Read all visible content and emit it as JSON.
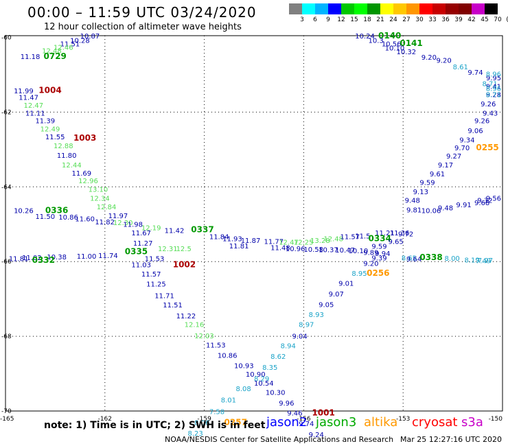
{
  "header": {
    "title": "00:00 – 11:59 UTC 03/24/2020",
    "subtitle": "12 hour collection of altimeter wave heights"
  },
  "color_scale": {
    "labels": [
      "3",
      "6",
      "9",
      "12",
      "15",
      "18",
      "21",
      "24",
      "27",
      "30",
      "33",
      "36",
      "39",
      "42",
      "45",
      "70",
      "(ft)"
    ],
    "colors": [
      "#808080",
      "#00ffff",
      "#00b4ff",
      "#0000ff",
      "#00c800",
      "#00ff00",
      "#009600",
      "#ffff00",
      "#ffc800",
      "#ff9600",
      "#ff0000",
      "#c80000",
      "#960000",
      "#800000",
      "#c800c8",
      "#000000"
    ]
  },
  "map": {
    "lon_range": [
      -165,
      -150
    ],
    "lat_range": [
      -70,
      -60
    ],
    "lat_ticks": [
      "-60",
      "-62",
      "-64",
      "-66",
      "-68",
      "-70"
    ],
    "lon_ticks": [
      "-165",
      "-162",
      "-159",
      "-156",
      "-153",
      "-150"
    ]
  },
  "colors": {
    "j2_dark": "#0000aa",
    "j2_light": "#1aa3c8",
    "j3_light": "#55dd55",
    "j3_dark": "#009900",
    "altika": "#ff9900",
    "cryosat": "#aa0000",
    "s3a": "#1a88ff"
  },
  "measurements": [
    {
      "v": "10.87",
      "lon": -162.75,
      "lat": -60.03,
      "c": "j2_dark"
    },
    {
      "v": "10.28",
      "lon": -163.05,
      "lat": -60.15,
      "c": "j2_dark"
    },
    {
      "v": "11.51",
      "lon": -163.35,
      "lat": -60.24,
      "c": "j2_dark"
    },
    {
      "v": "12.46",
      "lon": -163.55,
      "lat": -60.33,
      "c": "j3_light"
    },
    {
      "v": "12.48",
      "lon": -163.9,
      "lat": -60.42,
      "c": "j3_light"
    },
    {
      "v": "11.18",
      "lon": -164.55,
      "lat": -60.58,
      "c": "j2_dark"
    },
    {
      "v": "0729",
      "lon": -163.85,
      "lat": -60.58,
      "c": "j3_dark",
      "id": true
    },
    {
      "v": "11.99",
      "lon": -164.75,
      "lat": -61.5,
      "c": "j2_dark"
    },
    {
      "v": "1004",
      "lon": -164.0,
      "lat": -61.49,
      "c": "cryosat",
      "id": true
    },
    {
      "v": "11.47",
      "lon": -164.6,
      "lat": -61.67,
      "c": "j2_dark"
    },
    {
      "v": "12.47",
      "lon": -164.45,
      "lat": -61.88,
      "c": "j3_light"
    },
    {
      "v": "11.11",
      "lon": -164.4,
      "lat": -62.09,
      "c": "j2_dark"
    },
    {
      "v": "11.39",
      "lon": -164.1,
      "lat": -62.3,
      "c": "j2_dark"
    },
    {
      "v": "12.49",
      "lon": -163.95,
      "lat": -62.52,
      "c": "j3_light"
    },
    {
      "v": "11.55",
      "lon": -163.8,
      "lat": -62.73,
      "c": "j2_dark"
    },
    {
      "v": "1003",
      "lon": -162.95,
      "lat": -62.76,
      "c": "cryosat",
      "id": true
    },
    {
      "v": "12.88",
      "lon": -163.55,
      "lat": -62.97,
      "c": "j3_light"
    },
    {
      "v": "11.80",
      "lon": -163.45,
      "lat": -63.22,
      "c": "j2_dark"
    },
    {
      "v": "12.44",
      "lon": -163.3,
      "lat": -63.48,
      "c": "j3_light"
    },
    {
      "v": "11.69",
      "lon": -163.0,
      "lat": -63.7,
      "c": "j2_dark"
    },
    {
      "v": "12.96",
      "lon": -162.8,
      "lat": -63.9,
      "c": "j3_light"
    },
    {
      "v": "13.10",
      "lon": -162.5,
      "lat": -64.13,
      "c": "j3_light"
    },
    {
      "v": "12.34",
      "lon": -162.45,
      "lat": -64.37,
      "c": "j3_light"
    },
    {
      "v": "12.84",
      "lon": -162.25,
      "lat": -64.6,
      "c": "j3_light"
    },
    {
      "v": "10.26",
      "lon": -164.75,
      "lat": -64.7,
      "c": "j2_dark"
    },
    {
      "v": "0336",
      "lon": -163.8,
      "lat": -64.7,
      "c": "j3_dark",
      "id": true
    },
    {
      "v": "11.97",
      "lon": -161.9,
      "lat": -64.84,
      "c": "j2_dark"
    },
    {
      "v": "11.50",
      "lon": -164.1,
      "lat": -64.86,
      "c": "j2_dark"
    },
    {
      "v": "10.86",
      "lon": -163.4,
      "lat": -64.88,
      "c": "j2_dark"
    },
    {
      "v": "11.60",
      "lon": -162.9,
      "lat": -64.92,
      "c": "j2_dark"
    },
    {
      "v": "11.82",
      "lon": -162.3,
      "lat": -65.0,
      "c": "j2_dark"
    },
    {
      "v": "12.30",
      "lon": -161.75,
      "lat": -65.02,
      "c": "j3_light"
    },
    {
      "v": "11.98",
      "lon": -161.45,
      "lat": -65.07,
      "c": "j2_dark"
    },
    {
      "v": "12.19",
      "lon": -160.9,
      "lat": -65.16,
      "c": "j3_light"
    },
    {
      "v": "11.42",
      "lon": -160.2,
      "lat": -65.23,
      "c": "j2_dark"
    },
    {
      "v": "0337",
      "lon": -159.4,
      "lat": -65.22,
      "c": "j3_dark",
      "id": true
    },
    {
      "v": "11.67",
      "lon": -161.2,
      "lat": -65.3,
      "c": "j2_dark"
    },
    {
      "v": "11.84",
      "lon": -158.85,
      "lat": -65.4,
      "c": "j2_dark"
    },
    {
      "v": "11.93",
      "lon": -158.45,
      "lat": -65.45,
      "c": "j2_dark"
    },
    {
      "v": "11.87",
      "lon": -157.9,
      "lat": -65.5,
      "c": "j2_dark"
    },
    {
      "v": "11.77",
      "lon": -157.2,
      "lat": -65.53,
      "c": "j2_dark"
    },
    {
      "v": "12.47",
      "lon": -156.75,
      "lat": -65.55,
      "c": "j3_light"
    },
    {
      "v": "12.25",
      "lon": -156.3,
      "lat": -65.55,
      "c": "j3_light"
    },
    {
      "v": "13.28",
      "lon": -155.8,
      "lat": -65.5,
      "c": "j3_light"
    },
    {
      "v": "12.48",
      "lon": -155.4,
      "lat": -65.45,
      "c": "j3_light"
    },
    {
      "v": "11.57",
      "lon": -154.9,
      "lat": -65.4,
      "c": "j2_dark"
    },
    {
      "v": "11.5",
      "lon": -154.45,
      "lat": -65.38,
      "c": "j2_dark"
    },
    {
      "v": "11.21",
      "lon": -153.85,
      "lat": -65.3,
      "c": "j2_dark"
    },
    {
      "v": "11.36",
      "lon": -153.4,
      "lat": -65.3,
      "c": "j2_dark"
    },
    {
      "v": "9.72",
      "lon": -153.15,
      "lat": -65.33,
      "c": "j2_dark"
    },
    {
      "v": "0334",
      "lon": -154.05,
      "lat": -65.45,
      "c": "j3_dark",
      "id": true
    },
    {
      "v": "9.65",
      "lon": -153.45,
      "lat": -65.53,
      "c": "j2_dark"
    },
    {
      "v": "11.27",
      "lon": -161.15,
      "lat": -65.57,
      "c": "j2_dark"
    },
    {
      "v": "11.81",
      "lon": -158.25,
      "lat": -65.65,
      "c": "j2_dark"
    },
    {
      "v": "11.48",
      "lon": -157.0,
      "lat": -65.69,
      "c": "j2_dark"
    },
    {
      "v": "10.96",
      "lon": -156.55,
      "lat": -65.72,
      "c": "j2_dark"
    },
    {
      "v": "10.58",
      "lon": -156.0,
      "lat": -65.74,
      "c": "j2_dark"
    },
    {
      "v": "10.37",
      "lon": -155.55,
      "lat": -65.75,
      "c": "j2_dark"
    },
    {
      "v": "10.47",
      "lon": -155.05,
      "lat": -65.76,
      "c": "j2_dark"
    },
    {
      "v": "10.10",
      "lon": -154.65,
      "lat": -65.78,
      "c": "j2_dark"
    },
    {
      "v": "12.31",
      "lon": -160.4,
      "lat": -65.72,
      "c": "j3_light"
    },
    {
      "v": "12.5",
      "lon": -159.85,
      "lat": -65.72,
      "c": "j3_light"
    },
    {
      "v": "0335",
      "lon": -161.4,
      "lat": -65.8,
      "c": "j3_dark",
      "id": true
    },
    {
      "v": "9.89",
      "lon": -154.2,
      "lat": -65.82,
      "c": "j2_dark"
    },
    {
      "v": "9.94",
      "lon": -153.85,
      "lat": -65.85,
      "c": "j2_dark"
    },
    {
      "v": "9.59",
      "lon": -153.95,
      "lat": -65.66,
      "c": "j2_dark"
    },
    {
      "v": "11.81",
      "lon": -164.9,
      "lat": -65.99,
      "c": "j2_dark"
    },
    {
      "v": "11.02",
      "lon": -164.5,
      "lat": -65.96,
      "c": "j2_dark"
    },
    {
      "v": "10.38",
      "lon": -163.75,
      "lat": -65.94,
      "c": "j2_dark"
    },
    {
      "v": "11.00",
      "lon": -162.85,
      "lat": -65.92,
      "c": "j2_dark"
    },
    {
      "v": "11.74",
      "lon": -162.2,
      "lat": -65.9,
      "c": "j2_dark"
    },
    {
      "v": "0332",
      "lon": -164.2,
      "lat": -66.03,
      "c": "j3_dark",
      "id": true
    },
    {
      "v": "11.53",
      "lon": -160.8,
      "lat": -65.99,
      "c": "j2_dark"
    },
    {
      "v": "1002",
      "lon": -159.95,
      "lat": -66.15,
      "c": "cryosat",
      "id": true
    },
    {
      "v": "11.03",
      "lon": -161.2,
      "lat": -66.15,
      "c": "j2_dark"
    },
    {
      "v": "9.39",
      "lon": -153.95,
      "lat": -65.97,
      "c": "j2_dark"
    },
    {
      "v": "9.20",
      "lon": -154.2,
      "lat": -66.12,
      "c": "j2_dark"
    },
    {
      "v": "0256",
      "lon": -154.1,
      "lat": -66.38,
      "c": "altika",
      "id": true
    },
    {
      "v": "8.95",
      "lon": -154.55,
      "lat": -66.38,
      "c": "j2_light"
    },
    {
      "v": "8.65",
      "lon": -153.05,
      "lat": -65.97,
      "c": "j2_light"
    },
    {
      "v": "9.64",
      "lon": -152.9,
      "lat": -66.0,
      "c": "j2_dark"
    },
    {
      "v": "0338",
      "lon": -152.5,
      "lat": -65.96,
      "c": "j3_dark",
      "id": true
    },
    {
      "v": "8.00",
      "lon": -151.75,
      "lat": -65.98,
      "c": "j2_light"
    },
    {
      "v": "8.19",
      "lon": -151.15,
      "lat": -66.02,
      "c": "j2_light"
    },
    {
      "v": "7.97",
      "lon": -150.75,
      "lat": -66.03,
      "c": "j2_light"
    },
    {
      "v": "7.49",
      "lon": -150.35,
      "lat": -66.04,
      "c": "j2_light"
    },
    {
      "v": "11.57",
      "lon": -160.9,
      "lat": -66.4,
      "c": "j2_dark"
    },
    {
      "v": "9.01",
      "lon": -154.95,
      "lat": -66.65,
      "c": "j2_dark"
    },
    {
      "v": "11.25",
      "lon": -160.75,
      "lat": -66.67,
      "c": "j2_dark"
    },
    {
      "v": "9.07",
      "lon": -155.25,
      "lat": -66.93,
      "c": "j2_dark"
    },
    {
      "v": "11.71",
      "lon": -160.5,
      "lat": -66.98,
      "c": "j2_dark"
    },
    {
      "v": "9.05",
      "lon": -155.55,
      "lat": -67.22,
      "c": "j2_dark"
    },
    {
      "v": "11.51",
      "lon": -160.25,
      "lat": -67.23,
      "c": "j2_dark"
    },
    {
      "v": "8.93",
      "lon": -155.85,
      "lat": -67.48,
      "c": "j2_light"
    },
    {
      "v": "11.22",
      "lon": -159.85,
      "lat": -67.52,
      "c": "j2_dark"
    },
    {
      "v": "8.97",
      "lon": -156.15,
      "lat": -67.75,
      "c": "j2_light"
    },
    {
      "v": "12.16",
      "lon": -159.6,
      "lat": -67.75,
      "c": "j3_light"
    },
    {
      "v": "9.04",
      "lon": -156.35,
      "lat": -68.06,
      "c": "j2_dark"
    },
    {
      "v": "12.03",
      "lon": -159.3,
      "lat": -68.05,
      "c": "j3_light"
    },
    {
      "v": "8.94",
      "lon": -156.7,
      "lat": -68.32,
      "c": "j2_light"
    },
    {
      "v": "11.53",
      "lon": -158.95,
      "lat": -68.3,
      "c": "j2_dark"
    },
    {
      "v": "8.62",
      "lon": -157.0,
      "lat": -68.6,
      "c": "j2_light"
    },
    {
      "v": "10.86",
      "lon": -158.6,
      "lat": -68.58,
      "c": "j2_dark"
    },
    {
      "v": "10.93",
      "lon": -158.1,
      "lat": -68.85,
      "c": "j2_dark"
    },
    {
      "v": "8.35",
      "lon": -157.25,
      "lat": -68.9,
      "c": "j2_light"
    },
    {
      "v": "10.90",
      "lon": -157.75,
      "lat": -69.08,
      "c": "j2_dark"
    },
    {
      "v": "8.29",
      "lon": -157.5,
      "lat": -69.2,
      "c": "j2_light"
    },
    {
      "v": "10.54",
      "lon": -157.5,
      "lat": -69.32,
      "c": "j2_dark"
    },
    {
      "v": "8.08",
      "lon": -158.05,
      "lat": -69.47,
      "c": "j2_light"
    },
    {
      "v": "10.30",
      "lon": -157.15,
      "lat": -69.57,
      "c": "j2_dark"
    },
    {
      "v": "8.01",
      "lon": -158.5,
      "lat": -69.77,
      "c": "j2_light"
    },
    {
      "v": "9.96",
      "lon": -156.75,
      "lat": -69.85,
      "c": "j2_dark"
    },
    {
      "v": "7.58",
      "lon": -158.85,
      "lat": -70.08,
      "c": "j2_light"
    },
    {
      "v": "9.46",
      "lon": -156.5,
      "lat": -70.12,
      "c": "j2_dark"
    },
    {
      "v": "1001",
      "lon": -155.75,
      "lat": -70.12,
      "c": "cryosat",
      "id": true
    },
    {
      "v": "8.06",
      "lon": -159.3,
      "lat": -70.38,
      "c": "j2_light"
    },
    {
      "v": "0257",
      "lon": -158.4,
      "lat": -70.38,
      "c": "altika",
      "id": true
    },
    {
      "v": "9.74",
      "lon": -156.15,
      "lat": -70.4,
      "c": "j2_dark"
    },
    {
      "v": "8.23",
      "lon": -159.5,
      "lat": -70.66,
      "c": "j2_light"
    },
    {
      "v": "9.24",
      "lon": -155.85,
      "lat": -70.7,
      "c": "j2_dark"
    },
    {
      "v": "10.24",
      "lon": -154.45,
      "lat": -60.03,
      "c": "j2_dark"
    },
    {
      "v": "0140",
      "lon": -153.75,
      "lat": -60.03,
      "c": "j3_dark",
      "id": true
    },
    {
      "v": "10.3",
      "lon": -154.05,
      "lat": -60.15,
      "c": "j2_dark"
    },
    {
      "v": "10.56",
      "lon": -153.65,
      "lat": -60.24,
      "c": "j2_dark"
    },
    {
      "v": "0141",
      "lon": -153.1,
      "lat": -60.23,
      "c": "j3_dark",
      "id": true
    },
    {
      "v": "10.10",
      "lon": -153.55,
      "lat": -60.35,
      "c": "j2_dark"
    },
    {
      "v": "10.32",
      "lon": -153.2,
      "lat": -60.45,
      "c": "j2_dark"
    },
    {
      "v": "9.20",
      "lon": -152.45,
      "lat": -60.6,
      "c": "j2_dark"
    },
    {
      "v": "9.20",
      "lon": -152.0,
      "lat": -60.68,
      "c": "j2_dark"
    },
    {
      "v": "8.61",
      "lon": -151.5,
      "lat": -60.85,
      "c": "j2_light"
    },
    {
      "v": "9.74",
      "lon": -151.05,
      "lat": -61.0,
      "c": "j2_dark"
    },
    {
      "v": "9.95",
      "lon": -150.5,
      "lat": -61.15,
      "c": "j2_dark"
    },
    {
      "v": "8.71",
      "lon": -150.15,
      "lat": -61.3,
      "c": "j2_light"
    },
    {
      "v": "8.96",
      "lon": -149.65,
      "lat": -61.05,
      "c": "j2_light"
    },
    {
      "v": "9.41",
      "lon": -149.75,
      "lat": -61.38,
      "c": "j2_dark"
    },
    {
      "v": "8.96",
      "lon": -149.95,
      "lat": -61.43,
      "c": "j2_light"
    },
    {
      "v": "9.28",
      "lon": -149.9,
      "lat": -61.6,
      "c": "j2_dark"
    },
    {
      "v": "8.71",
      "lon": -149.55,
      "lat": -61.6,
      "c": "j2_light"
    },
    {
      "v": "9.26",
      "lon": -150.2,
      "lat": -61.85,
      "c": "j2_dark"
    },
    {
      "v": "9.43",
      "lon": -150.6,
      "lat": -62.09,
      "c": "j2_dark"
    },
    {
      "v": "9.26",
      "lon": -150.85,
      "lat": -62.3,
      "c": "j2_dark"
    },
    {
      "v": "9.06",
      "lon": -151.05,
      "lat": -62.56,
      "c": "j2_dark"
    },
    {
      "v": "9.34",
      "lon": -151.3,
      "lat": -62.81,
      "c": "j2_dark"
    },
    {
      "v": "0255",
      "lon": -150.8,
      "lat": -63.02,
      "c": "altika",
      "id": true
    },
    {
      "v": "9.70",
      "lon": -151.45,
      "lat": -63.02,
      "c": "j2_dark"
    },
    {
      "v": "9.27",
      "lon": -151.7,
      "lat": -63.24,
      "c": "j2_dark"
    },
    {
      "v": "9.17",
      "lon": -151.95,
      "lat": -63.48,
      "c": "j2_dark"
    },
    {
      "v": "9.61",
      "lon": -152.2,
      "lat": -63.72,
      "c": "j2_dark"
    },
    {
      "v": "9.59",
      "lon": -152.5,
      "lat": -63.95,
      "c": "j2_dark"
    },
    {
      "v": "9.13",
      "lon": -152.7,
      "lat": -64.2,
      "c": "j2_dark"
    },
    {
      "v": "9.48",
      "lon": -152.95,
      "lat": -64.43,
      "c": "j2_dark"
    },
    {
      "v": "9.56",
      "lon": -149.7,
      "lat": -64.37,
      "c": "j2_dark"
    },
    {
      "v": "9.32",
      "lon": -150.3,
      "lat": -64.43,
      "c": "j2_dark"
    },
    {
      "v": "9.68",
      "lon": -150.85,
      "lat": -64.49,
      "c": "j2_dark"
    },
    {
      "v": "9.91",
      "lon": -151.4,
      "lat": -64.55,
      "c": "j2_dark"
    },
    {
      "v": "9.48",
      "lon": -151.95,
      "lat": -64.63,
      "c": "j2_dark"
    },
    {
      "v": "10.06",
      "lon": -152.45,
      "lat": -64.7,
      "c": "j2_dark"
    },
    {
      "v": "9.81",
      "lon": -152.9,
      "lat": -64.68,
      "c": "j2_dark"
    }
  ],
  "footer": {
    "note": "note: 1) Time is in UTC; 2) SWH is in feet",
    "satellites": [
      {
        "name": "jason2",
        "color": "#0000ff"
      },
      {
        "name": "jason3",
        "color": "#00aa00"
      },
      {
        "name": "altika",
        "color": "#ff9900"
      },
      {
        "name": "cryosat",
        "color": "#ff0000"
      },
      {
        "name": "s3a",
        "color": "#c800c8"
      }
    ],
    "credit": "NOAA/NESDIS Center for Satellite Applications and Research",
    "timestamp": "Mar 25 12:27:16 UTC 2020"
  }
}
